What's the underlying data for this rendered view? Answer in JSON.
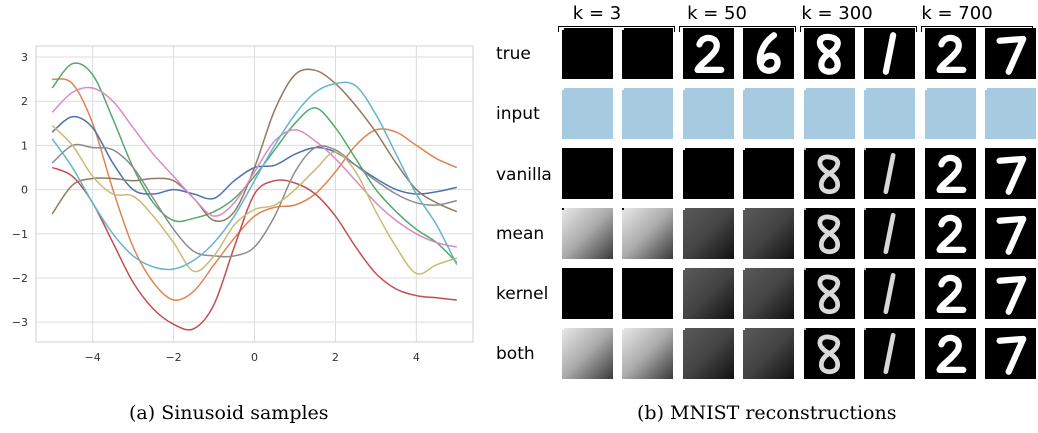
{
  "chart_data": {
    "type": "line",
    "title": "",
    "xlabel": "",
    "ylabel": "",
    "xlim": [
      -5.4,
      5.4
    ],
    "ylim": [
      -3.45,
      3.25
    ],
    "xticks": [
      -4,
      -2,
      0,
      2,
      4
    ],
    "yticks": [
      3,
      2,
      1,
      0,
      -1,
      -2,
      -3
    ],
    "xtick_labels": [
      "−4",
      "−2",
      "0",
      "2",
      "4"
    ],
    "ytick_labels": [
      "3",
      "2",
      "1",
      "0",
      "−1",
      "−2",
      "−3"
    ],
    "grid": true,
    "legend": "none",
    "series": [
      {
        "color": "#dd8452",
        "x": [
          -5,
          -4.5,
          -4,
          -3.5,
          -3,
          -2.5,
          -2,
          -1.5,
          -1,
          -0.5,
          0,
          0.5,
          1,
          1.5,
          2,
          2.5,
          3,
          3.5,
          4,
          4.5,
          5
        ],
        "y": [
          2.5,
          2.4,
          1.5,
          0.0,
          -1.3,
          -2.1,
          -2.5,
          -2.3,
          -1.7,
          -1.1,
          -0.6,
          -0.4,
          -0.35,
          -0.1,
          0.4,
          1.0,
          1.35,
          1.3,
          1.0,
          0.7,
          0.5
        ]
      },
      {
        "color": "#55a868",
        "x": [
          -5,
          -4.5,
          -4,
          -3.5,
          -3,
          -2.5,
          -2,
          -1.5,
          -1,
          -0.5,
          0,
          0.5,
          1,
          1.5,
          2,
          2.5,
          3,
          3.5,
          4,
          4.5,
          5
        ],
        "y": [
          2.3,
          2.85,
          2.6,
          1.6,
          0.5,
          -0.3,
          -0.7,
          -0.65,
          -0.5,
          -0.2,
          0.3,
          0.9,
          1.5,
          1.85,
          1.4,
          0.7,
          0.0,
          -0.5,
          -0.9,
          -1.2,
          -1.65
        ]
      },
      {
        "color": "#c44e52",
        "x": [
          -5,
          -4.5,
          -4,
          -3.5,
          -3,
          -2.5,
          -2,
          -1.5,
          -1,
          -0.5,
          0,
          0.5,
          1,
          1.5,
          2,
          2.5,
          3,
          3.5,
          4,
          4.5,
          5
        ],
        "y": [
          0.5,
          0.3,
          -0.3,
          -1.2,
          -2.1,
          -2.7,
          -3.05,
          -3.15,
          -2.6,
          -1.3,
          -0.1,
          0.2,
          0.15,
          -0.1,
          -0.6,
          -1.3,
          -1.9,
          -2.25,
          -2.4,
          -2.45,
          -2.5
        ]
      },
      {
        "color": "#4c72b0",
        "x": [
          -5,
          -4.5,
          -4,
          -3.5,
          -3,
          -2.5,
          -2,
          -1.5,
          -1,
          -0.5,
          0,
          0.5,
          1,
          1.5,
          2,
          2.5,
          3,
          3.5,
          4,
          4.5,
          5
        ],
        "y": [
          1.3,
          1.65,
          1.4,
          0.6,
          0.0,
          -0.1,
          0.0,
          -0.1,
          -0.2,
          0.2,
          0.5,
          0.55,
          0.8,
          0.95,
          0.85,
          0.55,
          0.25,
          0.0,
          -0.1,
          -0.05,
          0.05
        ]
      },
      {
        "color": "#937860",
        "x": [
          -5,
          -4.5,
          -4,
          -3.5,
          -3,
          -2.5,
          -2,
          -1.5,
          -1,
          -0.5,
          0,
          0.5,
          1,
          1.5,
          2,
          2.5,
          3,
          3.5,
          4,
          4.5,
          5
        ],
        "y": [
          -0.55,
          0.1,
          0.25,
          0.25,
          0.2,
          0.25,
          0.2,
          -0.2,
          -0.7,
          -0.5,
          0.5,
          1.8,
          2.6,
          2.7,
          2.4,
          1.9,
          1.3,
          0.6,
          0.0,
          -0.3,
          -0.5
        ]
      },
      {
        "color": "#da8bc3",
        "x": [
          -5,
          -4.5,
          -4,
          -3.5,
          -3,
          -2.5,
          -2,
          -1.5,
          -1,
          -0.5,
          0,
          0.5,
          1,
          1.5,
          2,
          2.5,
          3,
          3.5,
          4,
          4.5,
          5
        ],
        "y": [
          1.75,
          2.2,
          2.3,
          2.0,
          1.4,
          0.8,
          0.3,
          -0.2,
          -0.6,
          -0.3,
          0.4,
          1.1,
          1.35,
          1.1,
          0.7,
          0.2,
          -0.3,
          -0.7,
          -1.0,
          -1.2,
          -1.3
        ]
      },
      {
        "color": "#8c8c8c",
        "x": [
          -5,
          -4.5,
          -4,
          -3.5,
          -3,
          -2.5,
          -2,
          -1.5,
          -1,
          -0.5,
          0,
          0.5,
          1,
          1.5,
          2,
          2.5,
          3,
          3.5,
          4,
          4.5,
          5
        ],
        "y": [
          0.6,
          1.0,
          0.95,
          0.9,
          0.5,
          -0.2,
          -0.9,
          -1.4,
          -1.5,
          -1.5,
          -1.3,
          -0.6,
          0.4,
          0.95,
          0.9,
          0.55,
          0.2,
          -0.1,
          -0.3,
          -0.35,
          -0.25
        ]
      },
      {
        "color": "#ccb974",
        "x": [
          -5,
          -4.5,
          -4,
          -3.5,
          -3,
          -2.5,
          -2,
          -1.5,
          -1,
          -0.5,
          0,
          0.5,
          1,
          1.5,
          2,
          2.5,
          3,
          3.5,
          4,
          4.5,
          5
        ],
        "y": [
          1.45,
          1.0,
          0.3,
          -0.1,
          -0.15,
          -0.6,
          -1.2,
          -1.85,
          -1.5,
          -0.8,
          -0.45,
          -0.35,
          0.0,
          0.45,
          0.85,
          0.4,
          -0.5,
          -1.3,
          -1.9,
          -1.7,
          -1.55
        ]
      },
      {
        "color": "#64b5cd",
        "x": [
          -5,
          -4.5,
          -4,
          -3.5,
          -3,
          -2.5,
          -2,
          -1.5,
          -1,
          -0.5,
          0,
          0.5,
          1,
          1.5,
          2,
          2.5,
          3,
          3.5,
          4,
          4.5,
          5
        ],
        "y": [
          1.15,
          0.5,
          -0.3,
          -1.0,
          -1.5,
          -1.75,
          -1.8,
          -1.6,
          -1.2,
          -0.6,
          0.2,
          1.0,
          1.7,
          2.2,
          2.4,
          2.35,
          1.7,
          0.8,
          -0.1,
          -0.8,
          -1.7
        ]
      }
    ]
  },
  "captions": {
    "left": "(a) Sinusoid samples",
    "right": "(b) MNIST reconstructions"
  },
  "mnist": {
    "k_labels": [
      "k = 3",
      "k = 50",
      "k = 300",
      "k = 700"
    ],
    "row_labels": [
      "true",
      "input",
      "vanilla",
      "mean",
      "kernel",
      "both"
    ]
  }
}
